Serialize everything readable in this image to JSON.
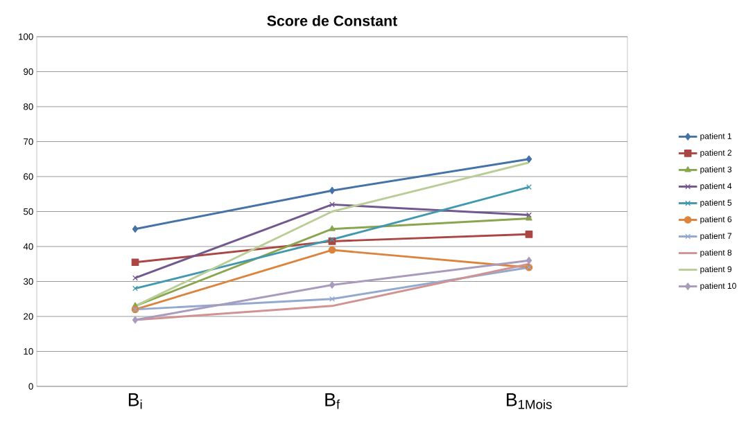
{
  "chart_data": {
    "type": "line",
    "title": "Score de Constant",
    "categories": [
      "B$_{i}$",
      "B$_{f}$",
      "B$_{1Mois}$"
    ],
    "ylim": [
      0,
      100
    ],
    "yticks": [
      0,
      10,
      20,
      30,
      40,
      50,
      60,
      70,
      80,
      90,
      100
    ],
    "grid": "y",
    "legend": "right",
    "series": [
      {
        "name": "patient 1",
        "color": "#4572a7",
        "marker": "diamond",
        "values": [
          45,
          56,
          65
        ]
      },
      {
        "name": "patient 2",
        "color": "#aa4643",
        "marker": "square",
        "values": [
          35.5,
          41.5,
          43.5
        ]
      },
      {
        "name": "patient 3",
        "color": "#89a54e",
        "marker": "triangle",
        "values": [
          23,
          45,
          48
        ]
      },
      {
        "name": "patient 4",
        "color": "#71588f",
        "marker": "cross",
        "values": [
          31,
          52,
          49
        ]
      },
      {
        "name": "patient 5",
        "color": "#4198af",
        "marker": "cross",
        "values": [
          28,
          42,
          57
        ]
      },
      {
        "name": "patient 6",
        "color": "#db843d",
        "marker": "circle",
        "values": [
          22,
          39,
          34
        ]
      },
      {
        "name": "patient 7",
        "color": "#93a9cf",
        "marker": "cross",
        "values": [
          22,
          25,
          34
        ]
      },
      {
        "name": "patient 8",
        "color": "#d19392",
        "marker": "none",
        "values": [
          19,
          23,
          35
        ]
      },
      {
        "name": "patient 9",
        "color": "#b9cd96",
        "marker": "none",
        "values": [
          23,
          50,
          64
        ]
      },
      {
        "name": "patient 10",
        "color": "#a99bbd",
        "marker": "diamond",
        "values": [
          19,
          29,
          36
        ]
      }
    ]
  }
}
